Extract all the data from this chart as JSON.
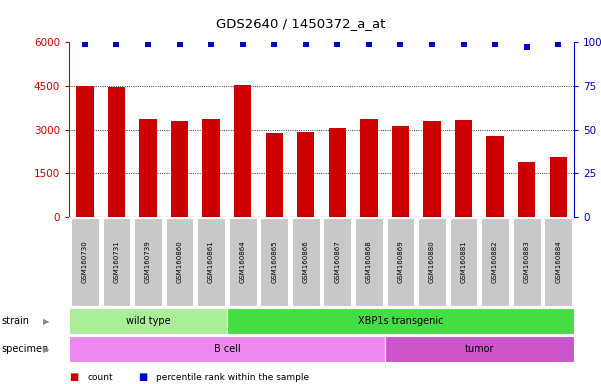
{
  "title": "GDS2640 / 1450372_a_at",
  "samples": [
    "GSM160730",
    "GSM160731",
    "GSM160739",
    "GSM160860",
    "GSM160861",
    "GSM160864",
    "GSM160865",
    "GSM160866",
    "GSM160867",
    "GSM160868",
    "GSM160869",
    "GSM160880",
    "GSM160881",
    "GSM160882",
    "GSM160883",
    "GSM160884"
  ],
  "counts": [
    4500,
    4450,
    3350,
    3300,
    3380,
    4520,
    2900,
    2920,
    3050,
    3380,
    3130,
    3310,
    3340,
    2780,
    1900,
    2050
  ],
  "percentile_ranks": [
    99,
    99,
    99,
    99,
    99,
    99,
    99,
    99,
    99,
    99,
    99,
    99,
    99,
    99,
    97,
    99
  ],
  "bar_color": "#cc0000",
  "dot_color": "#0000cc",
  "ylim_left": [
    0,
    6000
  ],
  "ylim_right": [
    0,
    100
  ],
  "yticks_left": [
    0,
    1500,
    3000,
    4500,
    6000
  ],
  "yticks_right": [
    0,
    25,
    50,
    75,
    100
  ],
  "strain_labels": [
    {
      "text": "wild type",
      "start": 0,
      "end": 4,
      "color": "#aaee99"
    },
    {
      "text": "XBP1s transgenic",
      "start": 5,
      "end": 15,
      "color": "#44dd44"
    }
  ],
  "specimen_labels": [
    {
      "text": "B cell",
      "start": 0,
      "end": 9,
      "color": "#ee88ee"
    },
    {
      "text": "tumor",
      "start": 10,
      "end": 15,
      "color": "#cc55cc"
    }
  ],
  "legend_items": [
    {
      "color": "#cc0000",
      "label": "count"
    },
    {
      "color": "#0000cc",
      "label": "percentile rank within the sample"
    }
  ],
  "background_color": "#ffffff",
  "tick_area_color": "#c8c8c8"
}
